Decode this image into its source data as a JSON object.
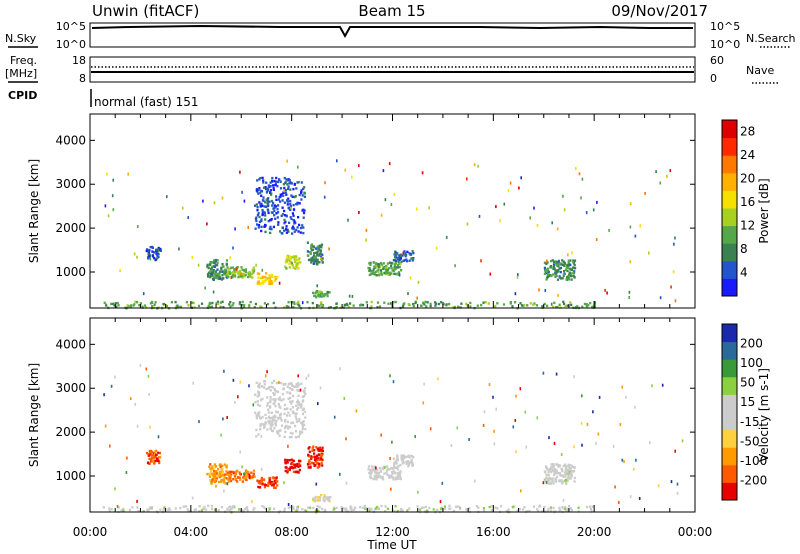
{
  "header": {
    "station": "Unwin (fitACF)",
    "beam": "Beam 15",
    "date": "09/Nov/2017"
  },
  "top_panels": {
    "nsky_label": "N.Sky",
    "nsky_ticks": [
      "10^5",
      "10^0"
    ],
    "nsearch_label": "N.Search",
    "nsearch_ticks": [
      "10^5",
      "10^0"
    ],
    "freq_label": "Freq.",
    "freq_unit": "[MHz]",
    "freq_ticks": [
      "18",
      "8"
    ],
    "nave_label": "Nave",
    "nave_ticks": [
      "60",
      "0"
    ],
    "cpid_label": "CPID",
    "cpid_value": "normal (fast) 151"
  },
  "colors": {
    "power": [
      "#1a1aff",
      "#2255cc",
      "#3a8050",
      "#55a84a",
      "#a8d020",
      "#f5e000",
      "#ffb000",
      "#ff7800",
      "#ff2a00",
      "#dd0000"
    ],
    "velocity": [
      "#e60000",
      "#ff5a00",
      "#ff9a00",
      "#ffd040",
      "#cccccc",
      "#cccccc",
      "#8ad040",
      "#3a9a3a",
      "#2a6a9a",
      "#1a2aaa"
    ]
  },
  "chart_data": [
    {
      "type": "heatmap",
      "title": "",
      "xlabel": "Time UT",
      "ylabel": "Slant Range [km]",
      "xlim": [
        "00:00",
        "24:00"
      ],
      "ylim": [
        180,
        4600
      ],
      "xticks": [
        "00:00",
        "04:00",
        "08:00",
        "12:00",
        "16:00",
        "20:00",
        "00:00"
      ],
      "yticks": [
        "1000",
        "2000",
        "3000",
        "4000"
      ],
      "colorbar": {
        "label": "Power [dB]",
        "ticks": [
          "4",
          "8",
          "12",
          "16",
          "20",
          "24",
          "28"
        ],
        "range": [
          0,
          30
        ]
      },
      "clusters": [
        {
          "t_start": 0.5,
          "t_end": 20.0,
          "r_min": 200,
          "r_max": 350,
          "value": 10
        },
        {
          "t_start": 4.6,
          "t_end": 5.4,
          "r_min": 850,
          "r_max": 1300,
          "value": 8
        },
        {
          "t_start": 5.4,
          "t_end": 6.5,
          "r_min": 900,
          "r_max": 1150,
          "value": 12
        },
        {
          "t_start": 6.6,
          "t_end": 7.4,
          "r_min": 750,
          "r_max": 1000,
          "value": 18
        },
        {
          "t_start": 7.7,
          "t_end": 8.3,
          "r_min": 1100,
          "r_max": 1400,
          "value": 14
        },
        {
          "t_start": 6.5,
          "t_end": 8.5,
          "r_min": 1900,
          "r_max": 3200,
          "value": 4
        },
        {
          "t_start": 8.6,
          "t_end": 9.2,
          "r_min": 1200,
          "r_max": 1700,
          "value": 8
        },
        {
          "t_start": 8.8,
          "t_end": 9.5,
          "r_min": 450,
          "r_max": 600,
          "value": 10
        },
        {
          "t_start": 11.0,
          "t_end": 12.3,
          "r_min": 950,
          "r_max": 1250,
          "value": 10
        },
        {
          "t_start": 12.0,
          "t_end": 12.8,
          "r_min": 1250,
          "r_max": 1500,
          "value": 5
        },
        {
          "t_start": 18.0,
          "t_end": 19.2,
          "r_min": 850,
          "r_max": 1300,
          "value": 8
        },
        {
          "t_start": 2.2,
          "t_end": 2.8,
          "r_min": 1300,
          "r_max": 1600,
          "value": 4
        }
      ]
    },
    {
      "type": "heatmap",
      "title": "",
      "xlabel": "Time UT",
      "ylabel": "Slant Range [km]",
      "xlim": [
        "00:00",
        "24:00"
      ],
      "ylim": [
        180,
        4600
      ],
      "xticks": [
        "00:00",
        "04:00",
        "08:00",
        "12:00",
        "16:00",
        "20:00",
        "00:00"
      ],
      "yticks": [
        "1000",
        "2000",
        "3000",
        "4000"
      ],
      "colorbar": {
        "label": "Velocity [m s-1]",
        "ticks": [
          "200",
          "100",
          "50",
          "15",
          "-15",
          "-50",
          "-100",
          "-200"
        ],
        "range": [
          -250,
          250
        ]
      },
      "clusters": [
        {
          "t_start": 0.5,
          "t_end": 20.0,
          "r_min": 200,
          "r_max": 350,
          "value": 20
        },
        {
          "t_start": 4.6,
          "t_end": 5.4,
          "r_min": 850,
          "r_max": 1300,
          "value": -120
        },
        {
          "t_start": 5.4,
          "t_end": 6.5,
          "r_min": 900,
          "r_max": 1150,
          "value": -160
        },
        {
          "t_start": 6.6,
          "t_end": 7.4,
          "r_min": 750,
          "r_max": 1000,
          "value": -200
        },
        {
          "t_start": 7.7,
          "t_end": 8.3,
          "r_min": 1100,
          "r_max": 1400,
          "value": -220
        },
        {
          "t_start": 6.5,
          "t_end": 8.5,
          "r_min": 1900,
          "r_max": 3200,
          "value": 0
        },
        {
          "t_start": 8.6,
          "t_end": 9.2,
          "r_min": 1200,
          "r_max": 1700,
          "value": -200
        },
        {
          "t_start": 8.8,
          "t_end": 9.5,
          "r_min": 450,
          "r_max": 600,
          "value": -40
        },
        {
          "t_start": 11.0,
          "t_end": 12.3,
          "r_min": 950,
          "r_max": 1250,
          "value": 0
        },
        {
          "t_start": 12.0,
          "t_end": 12.8,
          "r_min": 1250,
          "r_max": 1500,
          "value": 5
        },
        {
          "t_start": 18.0,
          "t_end": 19.2,
          "r_min": 850,
          "r_max": 1300,
          "value": 10
        },
        {
          "t_start": 2.2,
          "t_end": 2.8,
          "r_min": 1300,
          "r_max": 1600,
          "value": -180
        }
      ]
    }
  ]
}
